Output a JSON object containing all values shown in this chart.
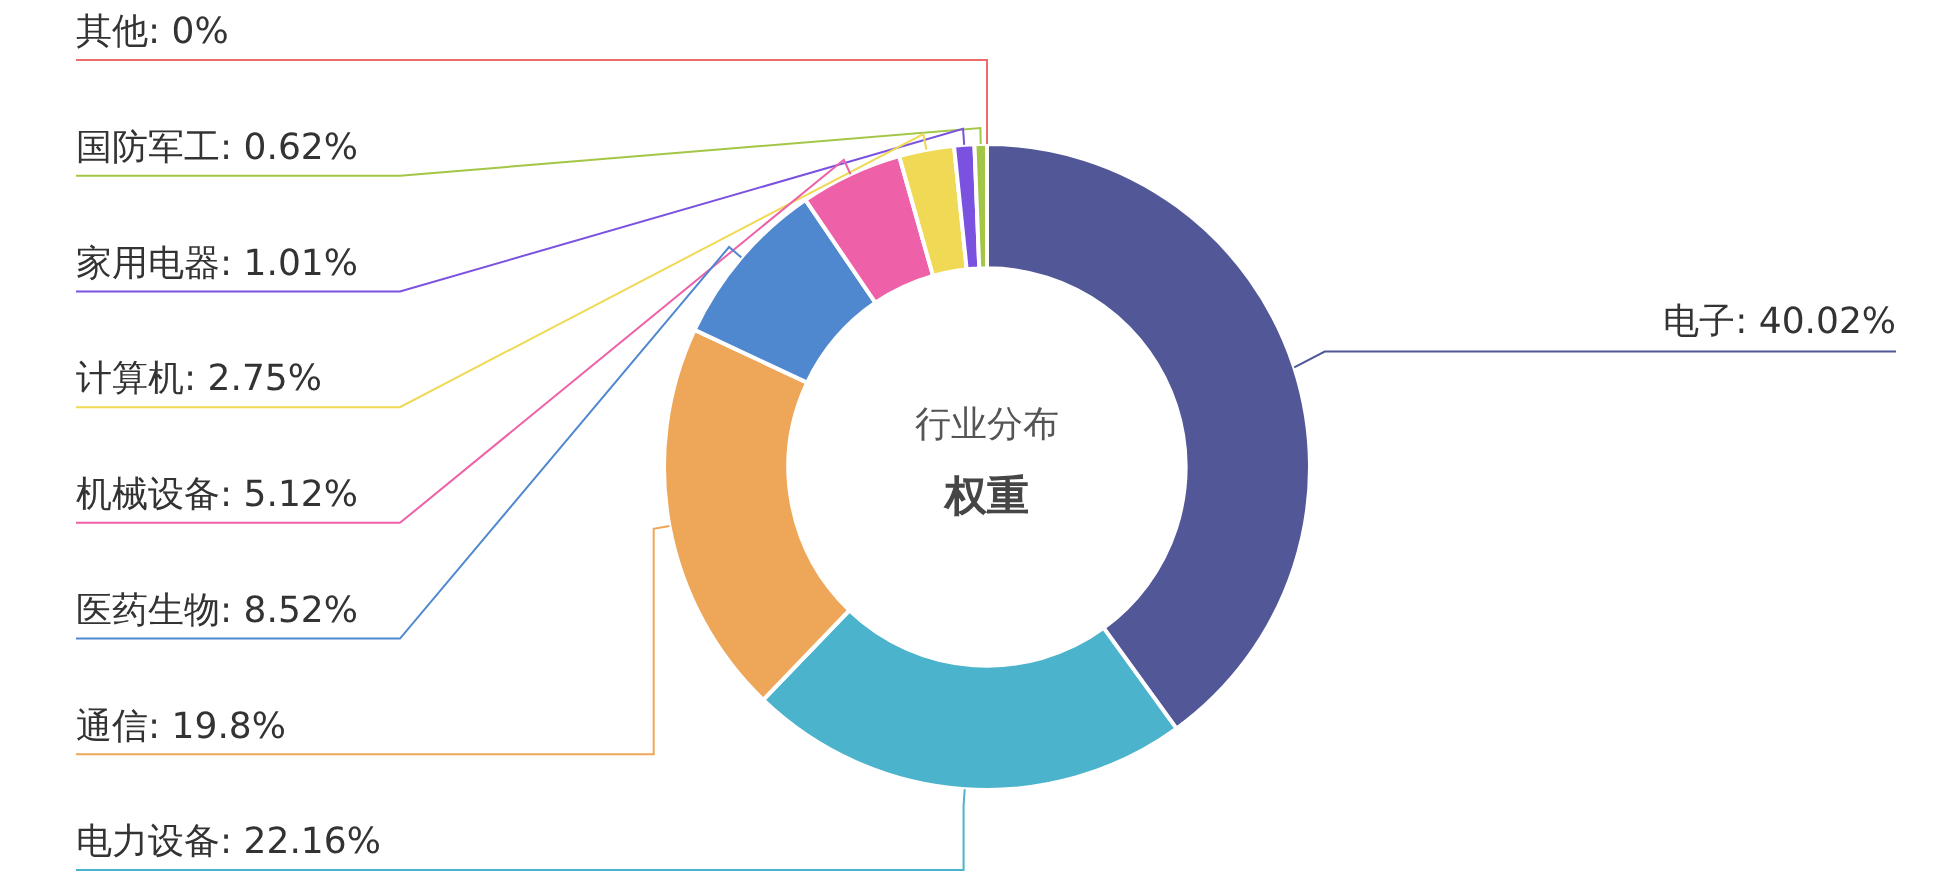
{
  "chart_data": {
    "type": "donut",
    "title": "行业分布",
    "subtitle": "权重",
    "categories": [
      "电子",
      "电力设备",
      "通信",
      "医药生物",
      "机械设备",
      "计算机",
      "家用电器",
      "国防军工",
      "其他"
    ],
    "values": [
      40.02,
      22.16,
      19.8,
      8.52,
      5.12,
      2.75,
      1.01,
      0.62,
      0
    ],
    "value_labels": [
      ": 40.02%",
      ": 22.16%",
      ": 19.8%",
      ": 8.52%",
      ": 5.12%",
      ": 2.75%",
      ": 1.01%",
      ": 0.62%",
      ": 0%"
    ],
    "colors": [
      "#515797",
      "#4bb3cb",
      "#eea658",
      "#5088cf",
      "#ee60a8",
      "#efd955",
      "#7b52e0",
      "#a3c646",
      "#ec6b6b"
    ],
    "legend": false
  }
}
